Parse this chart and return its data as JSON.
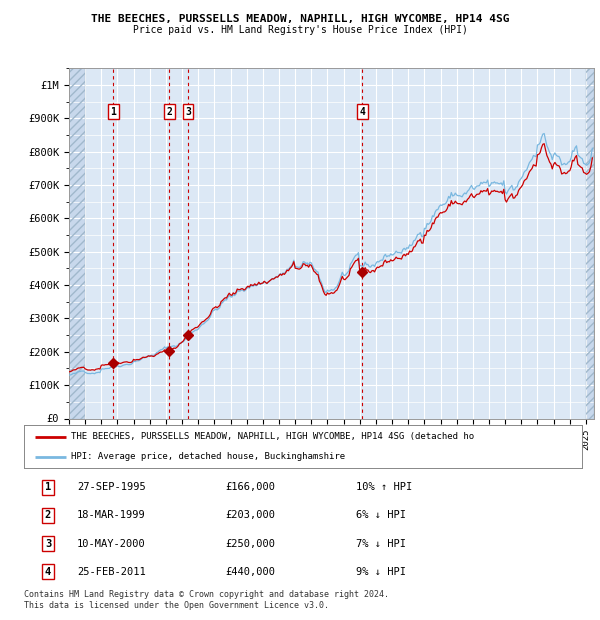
{
  "title_line1": "THE BEECHES, PURSSELLS MEADOW, NAPHILL, HIGH WYCOMBE, HP14 4SG",
  "title_line2": "Price paid vs. HM Land Registry's House Price Index (HPI)",
  "sale_dates_num": [
    1995.74,
    1999.21,
    2000.36,
    2011.15
  ],
  "sale_prices": [
    166000,
    203000,
    250000,
    440000
  ],
  "sale_labels": [
    "1",
    "2",
    "3",
    "4"
  ],
  "hpi_color": "#7ab8e0",
  "price_color": "#cc0000",
  "dot_color": "#aa0000",
  "vline_color": "#cc0000",
  "bg_color": "#dce8f5",
  "grid_color": "#ffffff",
  "legend_label_price": "THE BEECHES, PURSSELLS MEADOW, NAPHILL, HIGH WYCOMBE, HP14 4SG (detached ho",
  "legend_label_hpi": "HPI: Average price, detached house, Buckinghamshire",
  "table_rows": [
    [
      "1",
      "27-SEP-1995",
      "£166,000",
      "10% ↑ HPI"
    ],
    [
      "2",
      "18-MAR-1999",
      "£203,000",
      "6% ↓ HPI"
    ],
    [
      "3",
      "10-MAY-2000",
      "£250,000",
      "7% ↓ HPI"
    ],
    [
      "4",
      "25-FEB-2011",
      "£440,000",
      "9% ↓ HPI"
    ]
  ],
  "footer": "Contains HM Land Registry data © Crown copyright and database right 2024.\nThis data is licensed under the Open Government Licence v3.0.",
  "ylim": [
    0,
    1050000
  ],
  "xlim": [
    1993.0,
    2025.5
  ],
  "yticks": [
    0,
    100000,
    200000,
    300000,
    400000,
    500000,
    600000,
    700000,
    800000,
    900000,
    1000000
  ],
  "ytick_labels": [
    "£0",
    "£100K",
    "£200K",
    "£300K",
    "£400K",
    "£500K",
    "£600K",
    "£700K",
    "£800K",
    "£900K",
    "£1M"
  ]
}
